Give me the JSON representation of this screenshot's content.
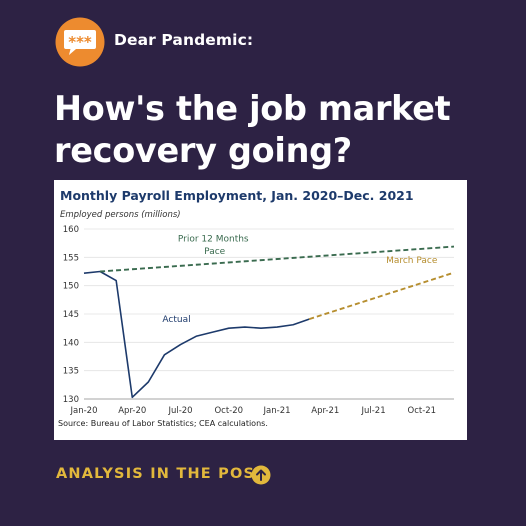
{
  "header": {
    "brand": "Dear Pandemic:",
    "logo_text": "***",
    "headline_line1": "How's the job market",
    "headline_line2": "recovery going?"
  },
  "cta": {
    "label": "ANALYSIS IN THE POST"
  },
  "colors": {
    "background": "#2d2244",
    "accent": "#e2b83c",
    "logo_orange": "#ed8b2f",
    "actual_line": "#1d3a6b",
    "prior_pace": "#3a6b4f",
    "march_pace": "#b68e2f"
  },
  "chart_data": {
    "type": "line",
    "title": "Monthly Payroll Employment, Jan. 2020–Dec. 2021",
    "ylabel": "Employed persons (millions)",
    "xlabel": "",
    "source": "Source: Bureau of Labor Statistics; CEA calculations.",
    "ylim": [
      130,
      160
    ],
    "yticks": [
      130,
      135,
      140,
      145,
      150,
      155,
      160
    ],
    "xlim": [
      "2020-01",
      "2021-12"
    ],
    "xticks": [
      "2020-01",
      "2020-04",
      "2020-07",
      "2020-10",
      "2021-01",
      "2021-04",
      "2021-07",
      "2021-10"
    ],
    "xtick_labels": [
      "Jan-20",
      "Apr-20",
      "Jul-20",
      "Oct-20",
      "Jan-21",
      "Apr-21",
      "Jul-21",
      "Oct-21"
    ],
    "grid": "horizontal",
    "series": [
      {
        "name": "Actual",
        "style": "solid",
        "x": [
          "2020-01",
          "2020-02",
          "2020-03",
          "2020-04",
          "2020-05",
          "2020-06",
          "2020-07",
          "2020-08",
          "2020-09",
          "2020-10",
          "2020-11",
          "2020-12",
          "2021-01",
          "2021-02",
          "2021-03"
        ],
        "y": [
          152.2,
          152.5,
          150.9,
          130.3,
          133.0,
          137.8,
          139.6,
          141.1,
          141.8,
          142.5,
          142.7,
          142.5,
          142.7,
          143.1,
          144.1
        ]
      },
      {
        "name": "Prior 12 Months Pace",
        "label_lines": [
          "Prior 12 Months",
          "Pace"
        ],
        "style": "dashed",
        "x": [
          "2020-02",
          "2021-12"
        ],
        "y": [
          152.5,
          156.9
        ]
      },
      {
        "name": "March Pace",
        "style": "dashed",
        "x": [
          "2021-03",
          "2021-12"
        ],
        "y": [
          144.1,
          152.3
        ]
      }
    ]
  }
}
